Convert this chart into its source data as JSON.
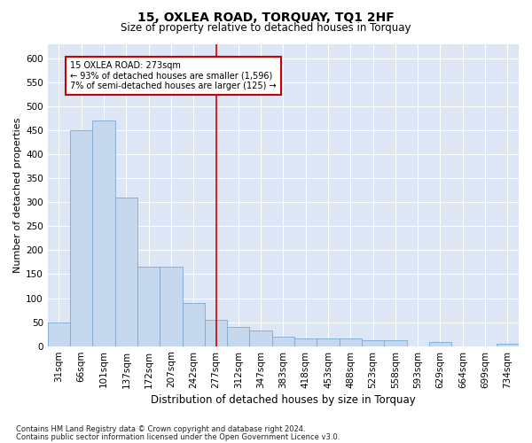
{
  "title": "15, OXLEA ROAD, TORQUAY, TQ1 2HF",
  "subtitle": "Size of property relative to detached houses in Torquay",
  "xlabel": "Distribution of detached houses by size in Torquay",
  "ylabel": "Number of detached properties",
  "footnote1": "Contains HM Land Registry data © Crown copyright and database right 2024.",
  "footnote2": "Contains public sector information licensed under the Open Government Licence v3.0.",
  "categories": [
    "31sqm",
    "66sqm",
    "101sqm",
    "137sqm",
    "172sqm",
    "207sqm",
    "242sqm",
    "277sqm",
    "312sqm",
    "347sqm",
    "383sqm",
    "418sqm",
    "453sqm",
    "488sqm",
    "523sqm",
    "558sqm",
    "593sqm",
    "629sqm",
    "664sqm",
    "699sqm",
    "734sqm"
  ],
  "values": [
    50,
    450,
    470,
    310,
    165,
    165,
    90,
    55,
    40,
    33,
    20,
    15,
    15,
    15,
    12,
    12,
    0,
    8,
    0,
    0,
    5
  ],
  "bar_color": "#c5d8ed",
  "bar_edge_color": "#7aaacf",
  "vline_index": 7,
  "vline_color": "#cc0000",
  "annotation_text": "15 OXLEA ROAD: 273sqm\n← 93% of detached houses are smaller (1,596)\n7% of semi-detached houses are larger (125) →",
  "annotation_box_color": "#ffffff",
  "annotation_box_edge": "#cc0000",
  "ylim": [
    0,
    630
  ],
  "yticks": [
    0,
    50,
    100,
    150,
    200,
    250,
    300,
    350,
    400,
    450,
    500,
    550,
    600
  ],
  "plot_background": "#dce6f5",
  "fig_background": "#ffffff",
  "title_fontsize": 10,
  "subtitle_fontsize": 8.5,
  "ylabel_fontsize": 8,
  "xlabel_fontsize": 8.5,
  "tick_fontsize": 7.5,
  "footnote_fontsize": 6
}
